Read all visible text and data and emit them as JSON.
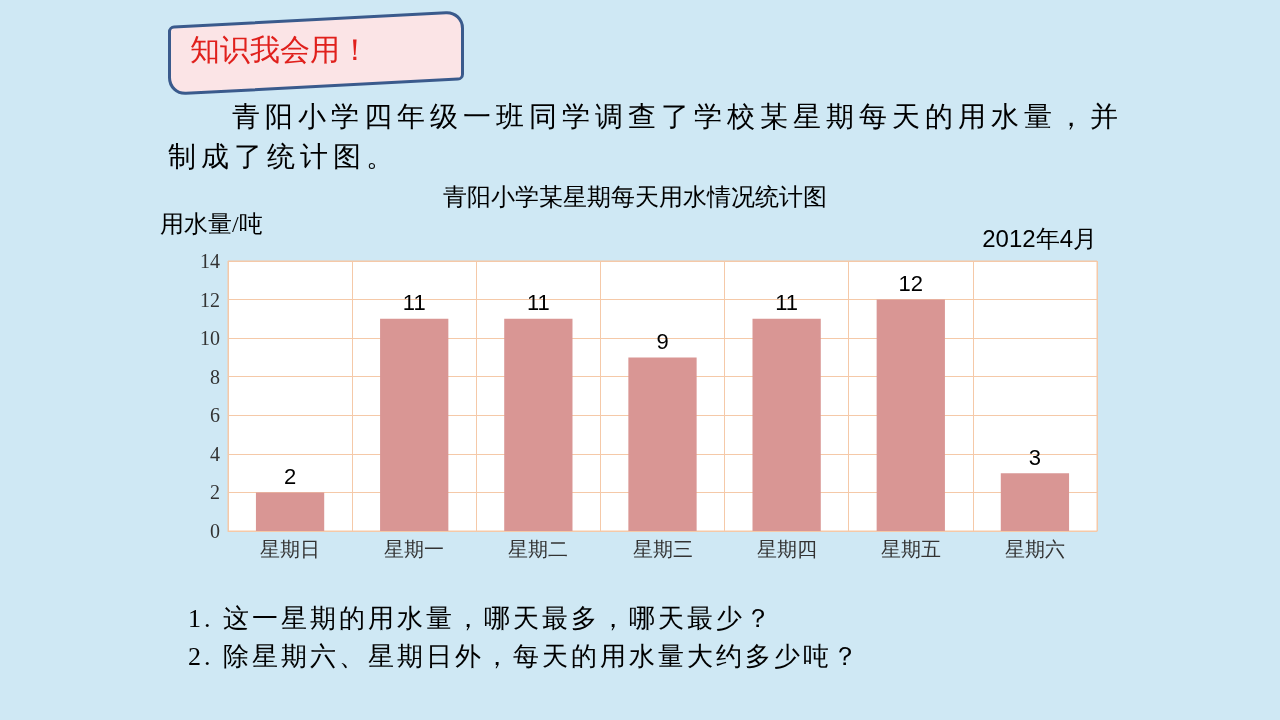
{
  "chart_data": {
    "type": "bar",
    "title": "青阳小学某星期每天用水情况统计图",
    "ylabel": "用水量/吨",
    "categories": [
      "星期日",
      "星期一",
      "星期二",
      "星期三",
      "星期四",
      "星期五",
      "星期六"
    ],
    "values": [
      2,
      11,
      11,
      9,
      11,
      12,
      3
    ],
    "color": "#d99694",
    "ylim": [
      0,
      14
    ],
    "yticks": [
      0,
      2,
      4,
      6,
      8,
      10,
      12,
      14
    ],
    "grid": true,
    "data_labels": true,
    "annotations": [
      "知识我会用！",
      "青阳小学四年级一班同学调查了学校某星期每天的用水量，并制成了统计图。",
      "2012年4月",
      "1. 这一星期的用水量，哪天最多，哪天最少？",
      "2. 除星期六、星期日外，每天的用水量大约多少吨？"
    ]
  }
}
